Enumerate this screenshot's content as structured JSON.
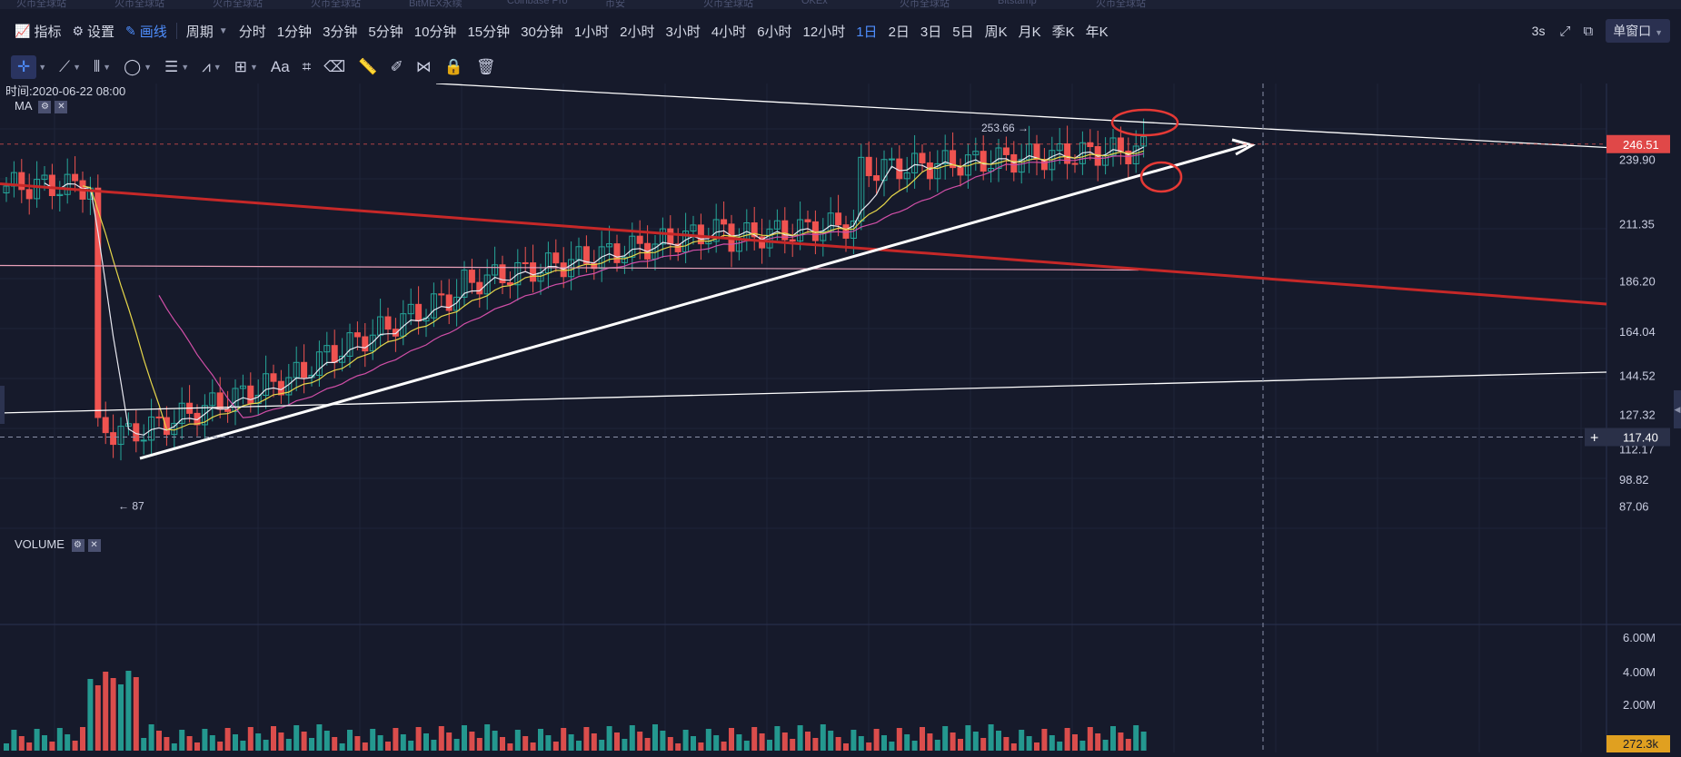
{
  "top_strip": [
    "火币全球站",
    "火币全球站",
    "火币全球站",
    "火币全球站",
    "BitMEX永续",
    "Coinbase Pro",
    "币安",
    "火币全球站",
    "OKEx",
    "火币全球站",
    "Bitstamp",
    "火币全球站"
  ],
  "toolbar": {
    "indicators_label": "指标",
    "settings_label": "设置",
    "draw_label": "画线",
    "period_label": "周期",
    "periods": [
      "分时",
      "1分钟",
      "3分钟",
      "5分钟",
      "10分钟",
      "15分钟",
      "30分钟",
      "1小时",
      "2小时",
      "3小时",
      "4小时",
      "6小时",
      "12小时",
      "1日",
      "2日",
      "3日",
      "5日",
      "周K",
      "月K",
      "季K",
      "年K"
    ],
    "active_period": "1日",
    "refresh": "3s",
    "window_mode": "单窗口"
  },
  "chart": {
    "time_label": "时间:2020-06-22 08:00",
    "ma_label": "MA",
    "volume_label": "VOLUME",
    "high_annotation": "253.66 →",
    "low_annotation": "← 87",
    "price_ticks": [
      "239.90",
      "211.35",
      "186.20",
      "164.04",
      "144.52",
      "127.32",
      "112.17",
      "98.82",
      "87.06"
    ],
    "current_price": "246.51",
    "crosshair_price": "117.40",
    "volume_ticks": [
      "6.00M",
      "4.00M",
      "2.00M"
    ],
    "current_volume": "272.3k",
    "colors": {
      "up": "#26a69a",
      "down": "#ef5350",
      "background": "#161a2b",
      "annotation_red": "#e53935",
      "trend_white": "#ffffff"
    }
  }
}
